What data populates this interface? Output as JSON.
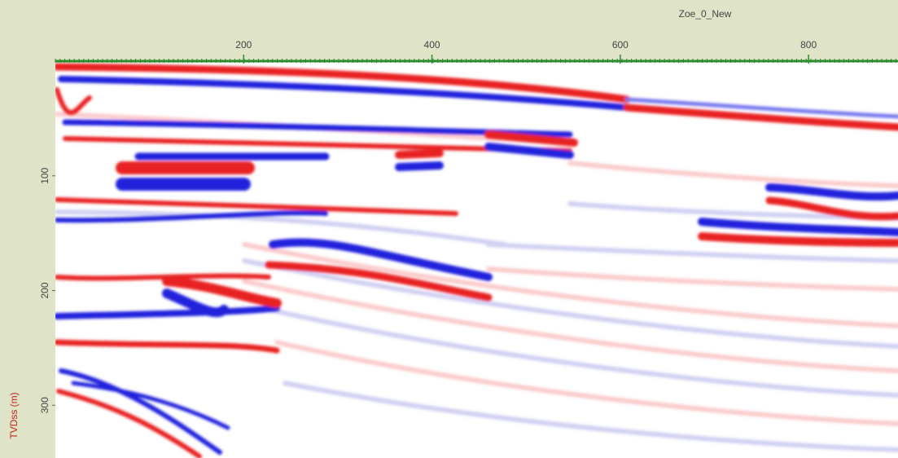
{
  "chart_data": {
    "type": "seismic",
    "title": "Zoe_0_New",
    "y_label": "TVDss (m)",
    "xlim": [
      0,
      895
    ],
    "xticks": [
      200,
      400,
      600,
      800
    ],
    "ylim": [
      0,
      346
    ],
    "yticks": [
      100,
      200,
      300
    ],
    "axis_color": "#2e8b2e",
    "y_label_color": "#cc2222"
  }
}
